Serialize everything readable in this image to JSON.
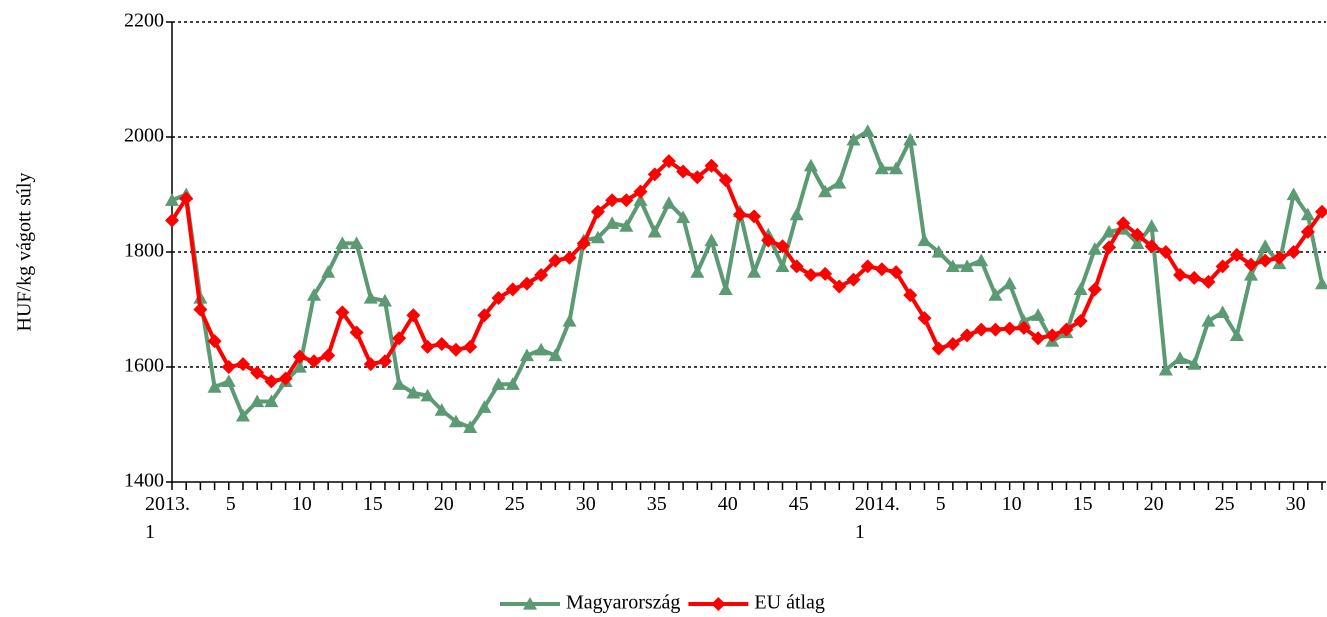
{
  "chart_data": {
    "type": "line",
    "y_label": "HUF/kg vágott súly",
    "categories": [
      "2013.\n1",
      null,
      null,
      null,
      "5",
      null,
      null,
      null,
      null,
      "10",
      null,
      null,
      null,
      null,
      "15",
      null,
      null,
      null,
      null,
      "20",
      null,
      null,
      null,
      null,
      "25",
      null,
      null,
      null,
      null,
      "30",
      null,
      null,
      null,
      null,
      "35",
      null,
      null,
      null,
      null,
      "40",
      null,
      null,
      null,
      null,
      "45",
      null,
      null,
      null,
      null,
      null,
      "2014.\n1",
      null,
      null,
      null,
      "5",
      null,
      null,
      null,
      null,
      "10",
      null,
      null,
      null,
      null,
      "15",
      null,
      null,
      null,
      null,
      "20",
      null,
      null,
      null,
      null,
      "25",
      null,
      null,
      null,
      null,
      "30",
      null,
      null
    ],
    "series": [
      {
        "name": "Magyarország",
        "color": "#5b9a73",
        "marker": "triangle",
        "values": [
          1890,
          1900,
          1720,
          1565,
          1575,
          1515,
          1540,
          1540,
          1575,
          1600,
          1725,
          1765,
          1815,
          1815,
          1720,
          1715,
          1570,
          1555,
          1550,
          1525,
          1505,
          1495,
          1530,
          1570,
          1570,
          1620,
          1630,
          1620,
          1680,
          1820,
          1825,
          1850,
          1845,
          1890,
          1835,
          1885,
          1860,
          1765,
          1820,
          1735,
          1870,
          1765,
          1830,
          1775,
          1865,
          1950,
          1905,
          1920,
          1995,
          2010,
          1945,
          1945,
          1995,
          1820,
          1800,
          1775,
          1775,
          1785,
          1725,
          1745,
          1680,
          1690,
          1645,
          1660,
          1735,
          1805,
          1835,
          1840,
          1815,
          1845,
          1595,
          1615,
          1605,
          1680,
          1695,
          1655,
          1760,
          1810,
          1780,
          1900,
          1865,
          1745
        ]
      },
      {
        "name": "EU átlag",
        "color": "#ff0000",
        "marker": "diamond",
        "values": [
          1855,
          1893,
          1700,
          1645,
          1600,
          1605,
          1590,
          1575,
          1580,
          1618,
          1610,
          1620,
          1695,
          1660,
          1605,
          1610,
          1650,
          1690,
          1635,
          1640,
          1630,
          1635,
          1690,
          1720,
          1735,
          1745,
          1760,
          1785,
          1790,
          1815,
          1870,
          1890,
          1890,
          1905,
          1935,
          1958,
          1940,
          1930,
          1950,
          1925,
          1865,
          1862,
          1820,
          1810,
          1775,
          1760,
          1762,
          1740,
          1752,
          1775,
          1770,
          1765,
          1725,
          1685,
          1632,
          1640,
          1655,
          1665,
          1665,
          1667,
          1668,
          1650,
          1655,
          1665,
          1680,
          1735,
          1808,
          1850,
          1830,
          1810,
          1800,
          1760,
          1755,
          1748,
          1775,
          1795,
          1778,
          1785,
          1790,
          1800,
          1835,
          1870
        ]
      }
    ],
    "ylim": [
      1400,
      2200
    ],
    "yticks": [
      1400,
      1600,
      1800,
      2000,
      2200
    ],
    "grid": true,
    "legend": "bottom"
  }
}
